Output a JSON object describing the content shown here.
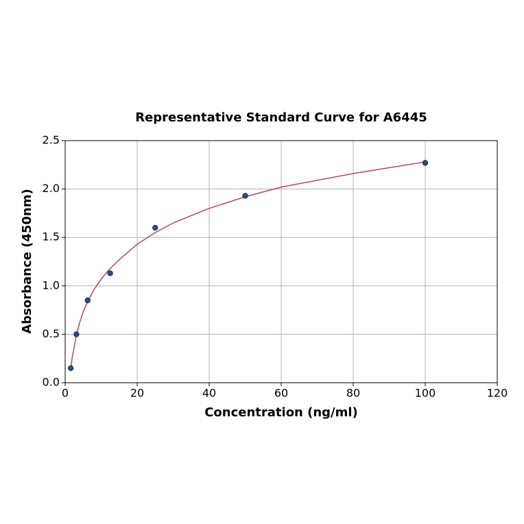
{
  "chart_data": {
    "type": "scatter",
    "title": "Representative Standard Curve for A6445",
    "xlabel": "Concentration (ng/ml)",
    "ylabel": "Absorbance (450nm)",
    "xlim": [
      0,
      120
    ],
    "xticks": [
      0,
      20,
      40,
      60,
      80,
      100,
      120
    ],
    "ylim": [
      0,
      2.5
    ],
    "yticks": [
      {
        "value": 0,
        "label": "0.0"
      },
      {
        "value": 0.5,
        "label": "0.5"
      },
      {
        "value": 1,
        "label": "1.0"
      },
      {
        "value": 1.5,
        "label": "1.5"
      },
      {
        "value": 2,
        "label": "2.0"
      },
      {
        "value": 2.5,
        "label": "2.5"
      }
    ],
    "grid": true,
    "series": [
      {
        "mode": "line",
        "color": "#b0466c",
        "x": [
          1.56,
          2,
          3,
          4,
          5,
          6,
          8,
          10,
          12,
          15,
          20,
          25,
          30,
          40,
          50,
          60,
          70,
          80,
          90,
          100
        ],
        "values": [
          0.15,
          0.27,
          0.47,
          0.62,
          0.73,
          0.82,
          0.96,
          1.07,
          1.16,
          1.27,
          1.43,
          1.55,
          1.65,
          1.8,
          1.92,
          2.02,
          2.09,
          2.16,
          2.22,
          2.28
        ]
      },
      {
        "mode": "markers",
        "color": "#2e4a7a",
        "x": [
          1.56,
          3.125,
          6.25,
          12.5,
          25,
          50,
          100
        ],
        "values": [
          0.15,
          0.5,
          0.85,
          1.13,
          1.6,
          1.93,
          2.27
        ]
      }
    ]
  }
}
